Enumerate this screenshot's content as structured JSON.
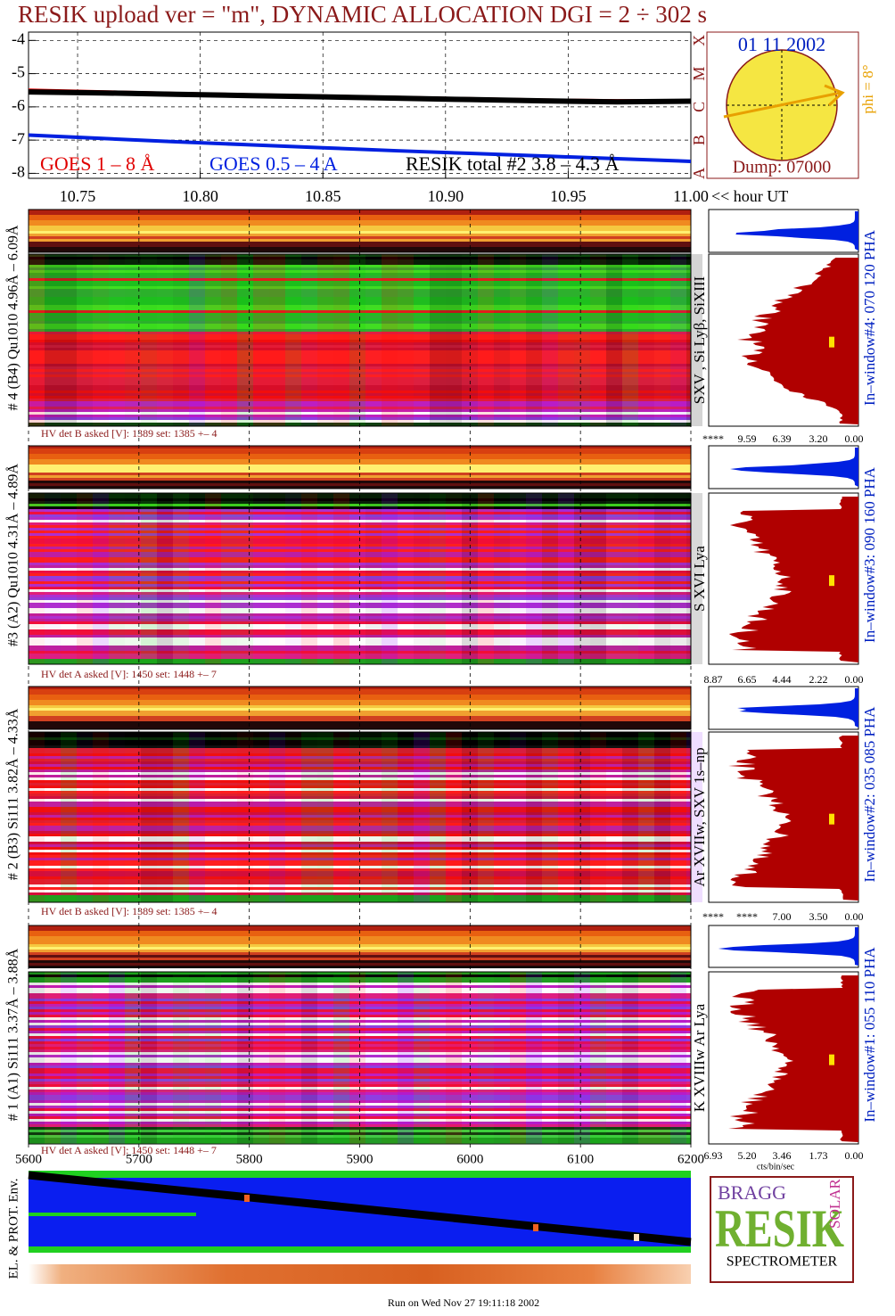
{
  "title": "RESIK upload ver = \"m\", DYNAMIC ALLOCATION  DGI =   2 ÷ 302 s",
  "chart_data": {
    "type": "line",
    "xlim": [
      10.73,
      11.0
    ],
    "ylim": [
      -3.75,
      -8.15
    ],
    "xticks": [
      10.75,
      {
        "value": 10.8,
        "label": "10.80"
      },
      10.85,
      {
        "value": 10.9,
        "label": "10.90"
      },
      10.95,
      {
        "value": 11.0,
        "label": "11.00"
      }
    ],
    "x_unit_label": "<< hour UT",
    "yticks": [
      -4,
      -5,
      -6,
      -7,
      -8
    ],
    "class_labels": [
      "X",
      "M",
      "C",
      "B",
      "A"
    ],
    "grid": true,
    "x": [
      10.73,
      10.76,
      10.79,
      10.82,
      10.85,
      10.88,
      10.91,
      10.94,
      10.97,
      11.0
    ],
    "series": [
      {
        "name": "GOES 1 – 8 Å",
        "color": "#e00000",
        "values": [
          -5.5,
          -5.55,
          -5.6,
          -5.64,
          -5.68,
          -5.72,
          -5.76,
          -5.8,
          -5.82,
          -5.82
        ]
      },
      {
        "name": "GOES 0.5 – 4 A",
        "color": "#0020e0",
        "values": [
          -6.85,
          -6.95,
          -7.05,
          -7.14,
          -7.23,
          -7.32,
          -7.4,
          -7.48,
          -7.56,
          -7.64
        ]
      },
      {
        "name": "RESIK total #2  3.8 – 4.3 Å",
        "color": "#000000",
        "values": [
          -5.55,
          -5.58,
          -5.62,
          -5.66,
          -5.7,
          -5.74,
          -5.78,
          -5.82,
          -5.85,
          -5.83
        ]
      }
    ]
  },
  "sun": {
    "date": "01 11 2002",
    "phi": "phi =  8°",
    "dump": "Dump: 07000"
  },
  "channel_axis": {
    "xlim": [
      5600,
      6200
    ],
    "xticks": [
      5600,
      5700,
      5800,
      5900,
      6000,
      6100,
      6200
    ]
  },
  "channels": [
    {
      "label": "# 4 (B4) Qu1010 4.96Å – 6.09Å",
      "hv": "HV det B asked [V]:  1389 set:  1385 +–   4",
      "line": "SXV , Si Lyβ, SiXIII",
      "pha": "In–window#4:  070 120 PHA",
      "hist_ticks": [
        "****",
        "9.59",
        "6.39",
        "3.20",
        "0.00"
      ]
    },
    {
      "label": "#3 (A2) Qu1010  4.31Å – 4.89Å",
      "hv": "HV det A asked [V]:  1450 set:  1448 +–   7",
      "line": "S XVI Lya",
      "pha": "In–window#3:  090 160 PHA",
      "hist_ticks": [
        "8.87",
        "6.65",
        "4.44",
        "2.22",
        "0.00"
      ]
    },
    {
      "label": "# 2 (B3) Si111  3.82Å – 4.33Å",
      "hv": "HV det B asked [V]:  1389 set:  1385 +–   4",
      "line": "Ar XVIIw,  SXV 1s–np",
      "pha": "In–window#2:  035 085 PHA",
      "hist_ticks": [
        "****",
        "****",
        "7.00",
        "3.50",
        "0.00"
      ]
    },
    {
      "label": "# 1 (A1) Si111  3.37Å – 3.88Å",
      "hv": "HV det A asked [V]:  1450 set:  1448 +–   7",
      "line": "K XVIIIw  Ar Lya",
      "pha": "In–window#1:  055 110 PHA",
      "hist_ticks": [
        "6.93",
        "5.20",
        "3.46",
        "1.73",
        "0.00"
      ]
    }
  ],
  "hist_unit": "cts/bin/sec",
  "env_label": "EL. & PROT. Env.",
  "logo": {
    "bragg": "BRAGG",
    "name": "RESIK",
    "solar": "SOLAR",
    "subtitle": "SPECTROMETER"
  },
  "footer": "Run on Wed Nov 27 19:11:18 2002"
}
